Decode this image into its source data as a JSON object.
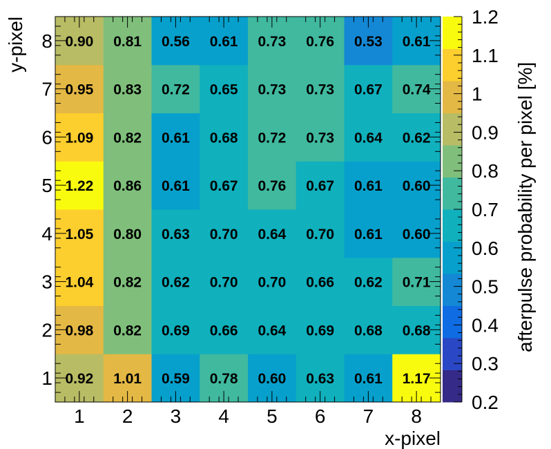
{
  "chart_data": {
    "type": "heatmap",
    "xlabel": "x-pixel",
    "ylabel": "y-pixel",
    "colorbar_label": "afterpulse probability per pixel  [%]",
    "x_categories": [
      "1",
      "2",
      "3",
      "4",
      "5",
      "6",
      "7",
      "8"
    ],
    "y_categories": [
      "1",
      "2",
      "3",
      "4",
      "5",
      "6",
      "7",
      "8"
    ],
    "zlim": [
      0.2,
      1.2
    ],
    "colorbar_ticks": [
      "0.2",
      "0.3",
      "0.4",
      "0.5",
      "0.6",
      "0.7",
      "0.8",
      "0.9",
      "1",
      "1.1",
      "1.2"
    ],
    "colorbar_tick_values": [
      0.2,
      0.3,
      0.4,
      0.5,
      0.6,
      0.7,
      0.8,
      0.9,
      1.0,
      1.1,
      1.2
    ],
    "values_note": "values[row][col]; row 0 = y-pixel 1, col 0 = x-pixel 1",
    "values": [
      [
        0.92,
        1.01,
        0.59,
        0.78,
        0.6,
        0.63,
        0.61,
        1.17
      ],
      [
        0.98,
        0.82,
        0.69,
        0.66,
        0.64,
        0.69,
        0.68,
        0.68
      ],
      [
        1.04,
        0.82,
        0.62,
        0.7,
        0.7,
        0.66,
        0.62,
        0.71
      ],
      [
        1.05,
        0.8,
        0.63,
        0.7,
        0.64,
        0.7,
        0.61,
        0.6
      ],
      [
        1.22,
        0.86,
        0.61,
        0.67,
        0.76,
        0.67,
        0.61,
        0.6
      ],
      [
        1.09,
        0.82,
        0.61,
        0.68,
        0.72,
        0.73,
        0.64,
        0.62
      ],
      [
        0.95,
        0.83,
        0.72,
        0.65,
        0.73,
        0.73,
        0.67,
        0.74
      ],
      [
        0.9,
        0.81,
        0.56,
        0.61,
        0.73,
        0.76,
        0.53,
        0.61
      ]
    ],
    "labels": [
      [
        "0.92",
        "1.01",
        "0.59",
        "0.78",
        "0.60",
        "0.63",
        "0.61",
        "1.17"
      ],
      [
        "0.98",
        "0.82",
        "0.69",
        "0.66",
        "0.64",
        "0.69",
        "0.68",
        "0.68"
      ],
      [
        "1.04",
        "0.82",
        "0.62",
        "0.70",
        "0.70",
        "0.66",
        "0.62",
        "0.71"
      ],
      [
        "1.05",
        "0.80",
        "0.63",
        "0.70",
        "0.64",
        "0.70",
        "0.61",
        "0.60"
      ],
      [
        "1.22",
        "0.86",
        "0.61",
        "0.67",
        "0.76",
        "0.67",
        "0.61",
        "0.60"
      ],
      [
        "1.09",
        "0.82",
        "0.61",
        "0.68",
        "0.72",
        "0.73",
        "0.64",
        "0.62"
      ],
      [
        "0.95",
        "0.83",
        "0.72",
        "0.65",
        "0.73",
        "0.73",
        "0.67",
        "0.74"
      ],
      [
        "0.90",
        "0.81",
        "0.56",
        "0.61",
        "0.73",
        "0.76",
        "0.53",
        "0.61"
      ]
    ],
    "grid": false,
    "colormap": "parula",
    "colormap_stops": [
      "#352a87",
      "#2a47c5",
      "#0f6ce3",
      "#1488d5",
      "#07a0cc",
      "#10b0bd",
      "#40b99f",
      "#7fbf7b",
      "#b8bc64",
      "#e4b844",
      "#fcce2e",
      "#f9fb0e"
    ]
  }
}
